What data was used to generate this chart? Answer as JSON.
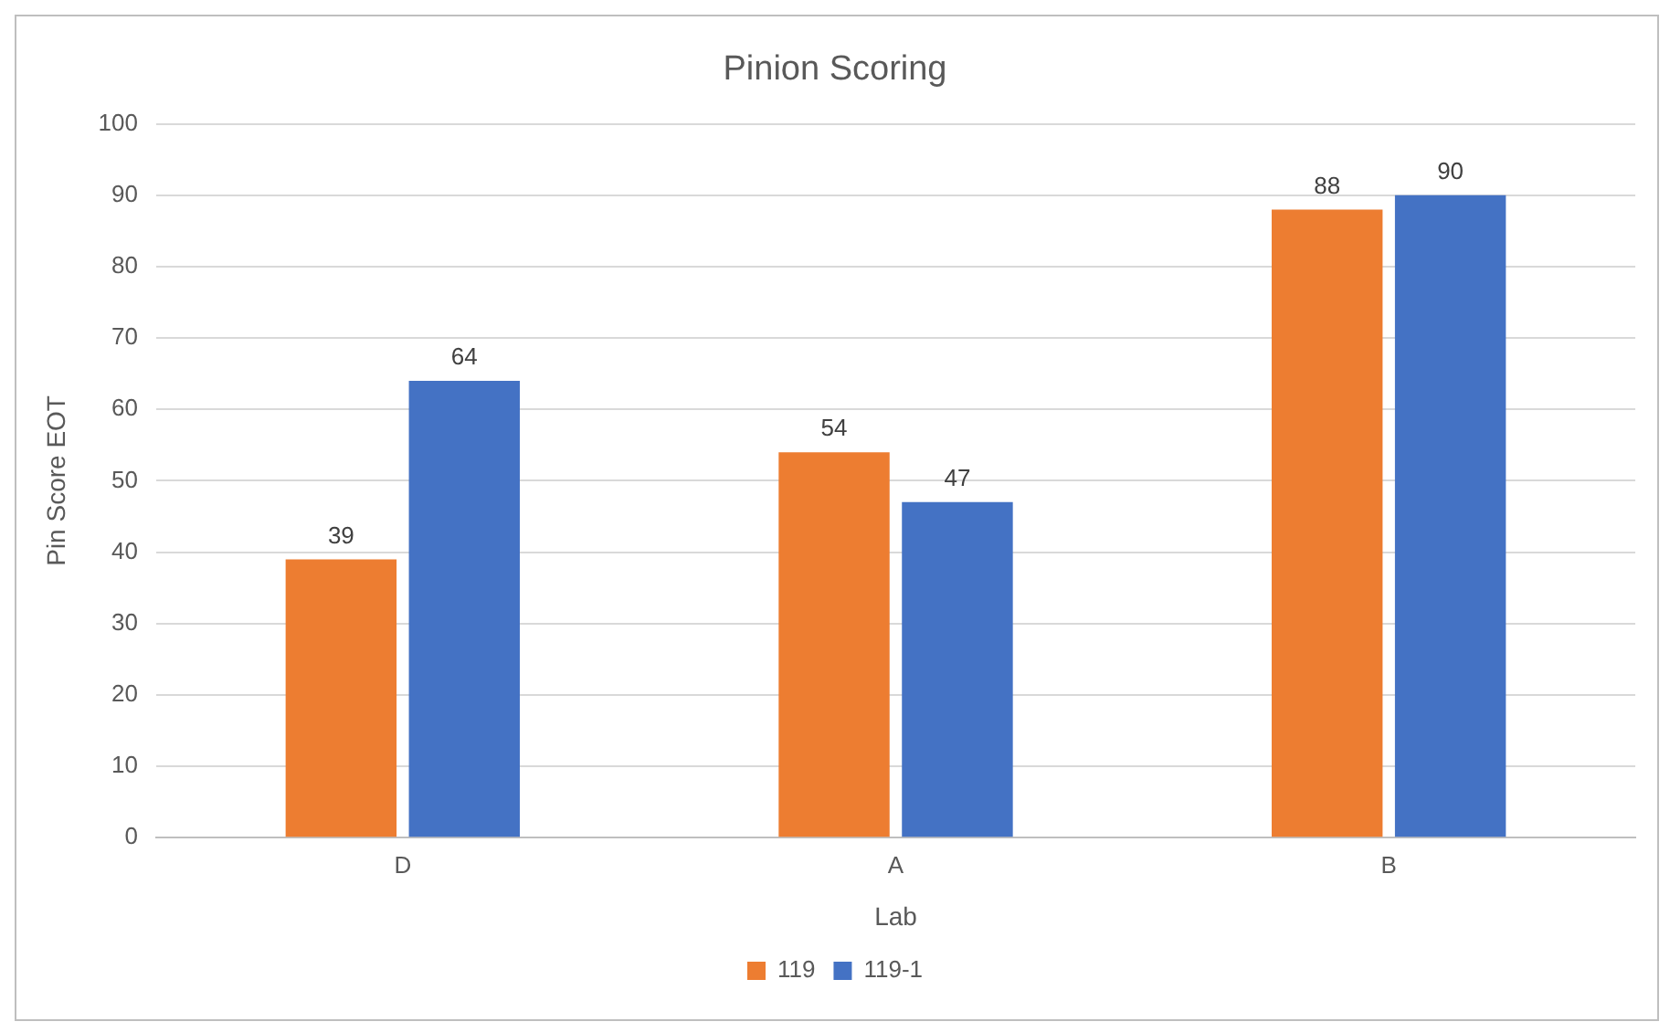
{
  "chart_data": {
    "type": "bar",
    "title": "Pinion Scoring",
    "xlabel": "Lab",
    "ylabel": "Pin Score EOT",
    "categories": [
      "D",
      "A",
      "B"
    ],
    "series": [
      {
        "name": "119",
        "color": "#ed7d31",
        "values": [
          39,
          54,
          88
        ]
      },
      {
        "name": "119-1",
        "color": "#4472c4",
        "values": [
          64,
          47,
          90
        ]
      }
    ],
    "ylim": [
      0,
      100
    ],
    "yticks": [
      0,
      10,
      20,
      30,
      40,
      50,
      60,
      70,
      80,
      90,
      100
    ],
    "grid": "y",
    "legend": "bottom",
    "data_labels": true
  }
}
